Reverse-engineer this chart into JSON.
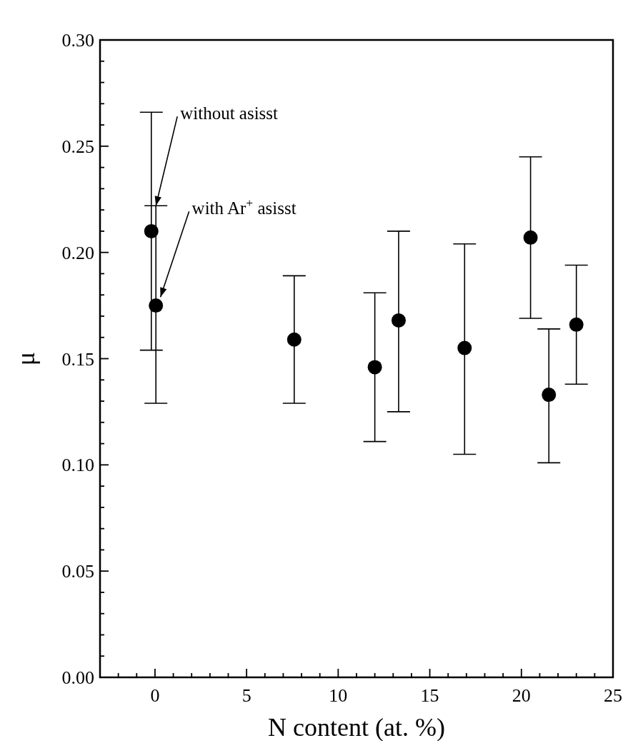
{
  "chart_data": {
    "type": "scatter",
    "xlabel": "N content (at. %)",
    "ylabel": "μ",
    "x": [
      -0.2,
      0.05,
      7.6,
      12.0,
      13.3,
      16.9,
      20.5,
      21.5,
      23.0
    ],
    "values": [
      0.21,
      0.175,
      0.159,
      0.146,
      0.168,
      0.155,
      0.207,
      0.133,
      0.166
    ],
    "errors": [
      [
        0.154,
        0.266
      ],
      [
        0.129,
        0.222
      ],
      [
        0.129,
        0.189
      ],
      [
        0.111,
        0.181
      ],
      [
        0.125,
        0.21
      ],
      [
        0.105,
        0.204
      ],
      [
        0.169,
        0.245
      ],
      [
        0.101,
        0.164
      ],
      [
        0.138,
        0.194
      ]
    ],
    "color": "#000000",
    "marker": "circle",
    "grid": false,
    "xlim": [
      -3,
      25
    ],
    "ylim": [
      0,
      0.3
    ],
    "xticks": [
      {
        "value": -2,
        "label": null
      },
      {
        "value": -1,
        "label": null
      },
      0,
      {
        "value": 1,
        "label": null
      },
      {
        "value": 2,
        "label": null
      },
      {
        "value": 3,
        "label": null
      },
      {
        "value": 4,
        "label": null
      },
      5,
      {
        "value": 6,
        "label": null
      },
      {
        "value": 7,
        "label": null
      },
      {
        "value": 8,
        "label": null
      },
      {
        "value": 9,
        "label": null
      },
      10,
      {
        "value": 11,
        "label": null
      },
      {
        "value": 12,
        "label": null
      },
      {
        "value": 13,
        "label": null
      },
      {
        "value": 14,
        "label": null
      },
      15,
      {
        "value": 16,
        "label": null
      },
      {
        "value": 17,
        "label": null
      },
      {
        "value": 18,
        "label": null
      },
      {
        "value": 19,
        "label": null
      },
      20,
      {
        "value": 21,
        "label": null
      },
      {
        "value": 22,
        "label": null
      },
      {
        "value": 23,
        "label": null
      },
      {
        "value": 24,
        "label": null
      },
      25
    ],
    "yticks": [
      {
        "value": 0,
        "label": "0.00"
      },
      {
        "value": 0.01,
        "label": null
      },
      {
        "value": 0.02,
        "label": null
      },
      {
        "value": 0.03,
        "label": null
      },
      {
        "value": 0.04,
        "label": null
      },
      {
        "value": 0.05,
        "label": "0.05"
      },
      {
        "value": 0.06,
        "label": null
      },
      {
        "value": 0.07,
        "label": null
      },
      {
        "value": 0.08,
        "label": null
      },
      {
        "value": 0.09,
        "label": null
      },
      {
        "value": 0.1,
        "label": "0.10"
      },
      {
        "value": 0.11,
        "label": null
      },
      {
        "value": 0.12,
        "label": null
      },
      {
        "value": 0.13,
        "label": null
      },
      {
        "value": 0.14,
        "label": null
      },
      {
        "value": 0.15,
        "label": "0.15"
      },
      {
        "value": 0.16,
        "label": null
      },
      {
        "value": 0.17,
        "label": null
      },
      {
        "value": 0.18,
        "label": null
      },
      {
        "value": 0.19,
        "label": null
      },
      {
        "value": 0.2,
        "label": "0.20"
      },
      {
        "value": 0.21,
        "label": null
      },
      {
        "value": 0.22,
        "label": null
      },
      {
        "value": 0.23,
        "label": null
      },
      {
        "value": 0.24,
        "label": null
      },
      {
        "value": 0.25,
        "label": "0.25"
      },
      {
        "value": 0.26,
        "label": null
      },
      {
        "value": 0.27,
        "label": null
      },
      {
        "value": 0.28,
        "label": null
      },
      {
        "value": 0.29,
        "label": null
      },
      {
        "value": 0.3,
        "label": "0.30"
      }
    ],
    "annotations": [
      {
        "text": "without asisst",
        "x": 0.05,
        "y": 0.222
      },
      {
        "text": "with Ar$^{+}$ asisst",
        "x": 0.3,
        "y": 0.179
      }
    ]
  }
}
